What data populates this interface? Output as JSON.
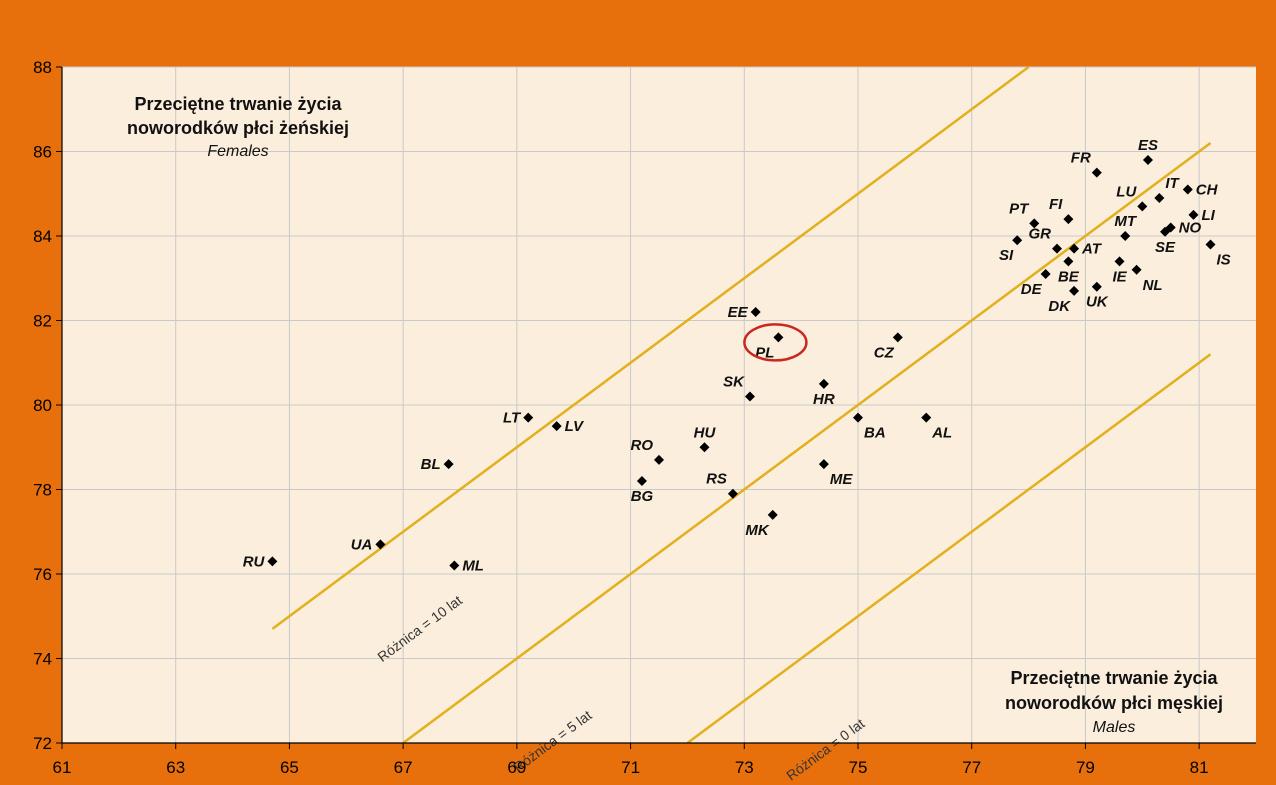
{
  "chart_data": {
    "type": "scatter",
    "y_title": {
      "line1": "Przeciętne trwanie życia",
      "line2": "noworodków płci żeńskiej",
      "line3": "Females"
    },
    "x_title": {
      "line1": "Przeciętne trwanie życia",
      "line2": "noworodków płci męskiej",
      "line3": "Males"
    },
    "xlim": [
      61,
      82
    ],
    "ylim": [
      72,
      88
    ],
    "x_ticks": [
      61,
      63,
      65,
      67,
      69,
      71,
      73,
      75,
      77,
      79,
      81
    ],
    "y_ticks": [
      72,
      74,
      76,
      78,
      80,
      82,
      84,
      86,
      88
    ],
    "grid": true,
    "highlight": "PL",
    "colors": {
      "outer_background": "#e8700c",
      "plot_background": "#fbeedd",
      "reference_lines": "#e2b01c",
      "points": "#000000",
      "highlight_circle": "#c8281e",
      "grid": "#c9c9c9"
    },
    "reference_lines": [
      {
        "label": "Różnica = 10 lat",
        "offset": 10,
        "x_range": [
          64.7,
          78.0
        ]
      },
      {
        "label": "Różnica = 5 lat",
        "offset": 5,
        "x_range": [
          67.0,
          81.2
        ]
      },
      {
        "label": "Różnica = 0 lat",
        "offset": 0,
        "x_range": [
          72.0,
          81.2
        ]
      }
    ],
    "points": [
      {
        "label": "RU",
        "x": 64.7,
        "y": 76.3,
        "pos": "left"
      },
      {
        "label": "UA",
        "x": 66.6,
        "y": 76.7,
        "pos": "left"
      },
      {
        "label": "ML",
        "x": 67.9,
        "y": 76.2,
        "pos": "right"
      },
      {
        "label": "BL",
        "x": 67.8,
        "y": 78.6,
        "pos": "left"
      },
      {
        "label": "LT",
        "x": 69.2,
        "y": 79.7,
        "pos": "left"
      },
      {
        "label": "LV",
        "x": 69.7,
        "y": 79.5,
        "pos": "right"
      },
      {
        "label": "BG",
        "x": 71.2,
        "y": 78.2,
        "pos": "below"
      },
      {
        "label": "RO",
        "x": 71.5,
        "y": 78.7,
        "pos": "above-left"
      },
      {
        "label": "HU",
        "x": 72.3,
        "y": 79.0,
        "pos": "above"
      },
      {
        "label": "RS",
        "x": 72.8,
        "y": 77.9,
        "pos": "above-left"
      },
      {
        "label": "MK",
        "x": 73.5,
        "y": 77.4,
        "pos": "below-left"
      },
      {
        "label": "SK",
        "x": 73.1,
        "y": 80.2,
        "pos": "above-left"
      },
      {
        "label": "EE",
        "x": 73.2,
        "y": 82.2,
        "pos": "left"
      },
      {
        "label": "PL",
        "x": 73.6,
        "y": 81.6,
        "pos": "below-left"
      },
      {
        "label": "HR",
        "x": 74.4,
        "y": 80.5,
        "pos": "below"
      },
      {
        "label": "ME",
        "x": 74.4,
        "y": 78.6,
        "pos": "below-right"
      },
      {
        "label": "BA",
        "x": 75.0,
        "y": 79.7,
        "pos": "below-right"
      },
      {
        "label": "CZ",
        "x": 75.7,
        "y": 81.6,
        "pos": "below-left"
      },
      {
        "label": "AL",
        "x": 76.2,
        "y": 79.7,
        "pos": "below-right"
      },
      {
        "label": "SI",
        "x": 77.8,
        "y": 83.9,
        "pos": "below-left"
      },
      {
        "label": "PT",
        "x": 78.1,
        "y": 84.3,
        "pos": "above-left"
      },
      {
        "label": "DE",
        "x": 78.3,
        "y": 83.1,
        "pos": "below-left"
      },
      {
        "label": "GR",
        "x": 78.5,
        "y": 83.7,
        "pos": "above-left"
      },
      {
        "label": "FI",
        "x": 78.7,
        "y": 84.4,
        "pos": "above-left"
      },
      {
        "label": "BE",
        "x": 78.7,
        "y": 83.4,
        "pos": "below"
      },
      {
        "label": "AT",
        "x": 78.8,
        "y": 83.7,
        "pos": "right"
      },
      {
        "label": "DK",
        "x": 78.8,
        "y": 82.7,
        "pos": "below-left"
      },
      {
        "label": "UK",
        "x": 79.2,
        "y": 82.8,
        "pos": "below"
      },
      {
        "label": "FR",
        "x": 79.2,
        "y": 85.5,
        "pos": "above-left"
      },
      {
        "label": "MT",
        "x": 79.7,
        "y": 84.0,
        "pos": "above"
      },
      {
        "label": "IE",
        "x": 79.6,
        "y": 83.4,
        "pos": "below"
      },
      {
        "label": "LU",
        "x": 80.0,
        "y": 84.7,
        "pos": "above-left"
      },
      {
        "label": "NL",
        "x": 79.9,
        "y": 83.2,
        "pos": "below-right"
      },
      {
        "label": "ES",
        "x": 80.1,
        "y": 85.8,
        "pos": "above"
      },
      {
        "label": "IT",
        "x": 80.3,
        "y": 84.9,
        "pos": "above-right"
      },
      {
        "label": "SE",
        "x": 80.4,
        "y": 84.1,
        "pos": "below"
      },
      {
        "label": "NO",
        "x": 80.5,
        "y": 84.2,
        "pos": "right"
      },
      {
        "label": "CH",
        "x": 80.8,
        "y": 85.1,
        "pos": "right"
      },
      {
        "label": "LI",
        "x": 80.9,
        "y": 84.5,
        "pos": "right"
      },
      {
        "label": "IS",
        "x": 81.2,
        "y": 83.8,
        "pos": "below-right"
      }
    ]
  }
}
